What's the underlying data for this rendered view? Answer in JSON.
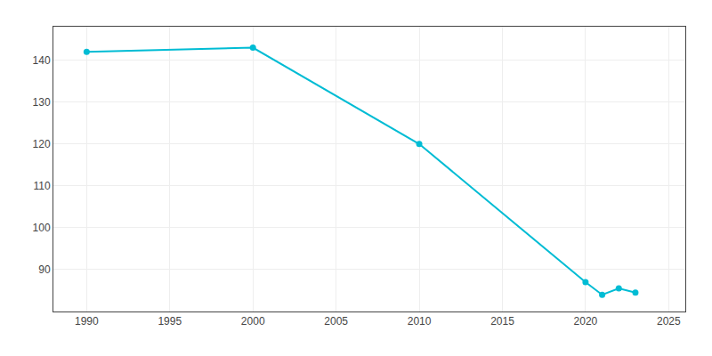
{
  "chart_data": {
    "type": "line",
    "x": [
      1990,
      2000,
      2010,
      2020,
      2021,
      2022,
      2023
    ],
    "values": [
      142,
      143,
      120,
      87,
      84,
      85.5,
      84.5
    ],
    "color": "#00BCD4",
    "marker": "circle",
    "xlim": [
      1988,
      2026
    ],
    "ylim": [
      80,
      148
    ],
    "xticks": [
      1990,
      1995,
      2000,
      2005,
      2010,
      2015,
      2020,
      2025
    ],
    "yticks": [
      90,
      100,
      110,
      120,
      130,
      140
    ],
    "grid": true
  }
}
